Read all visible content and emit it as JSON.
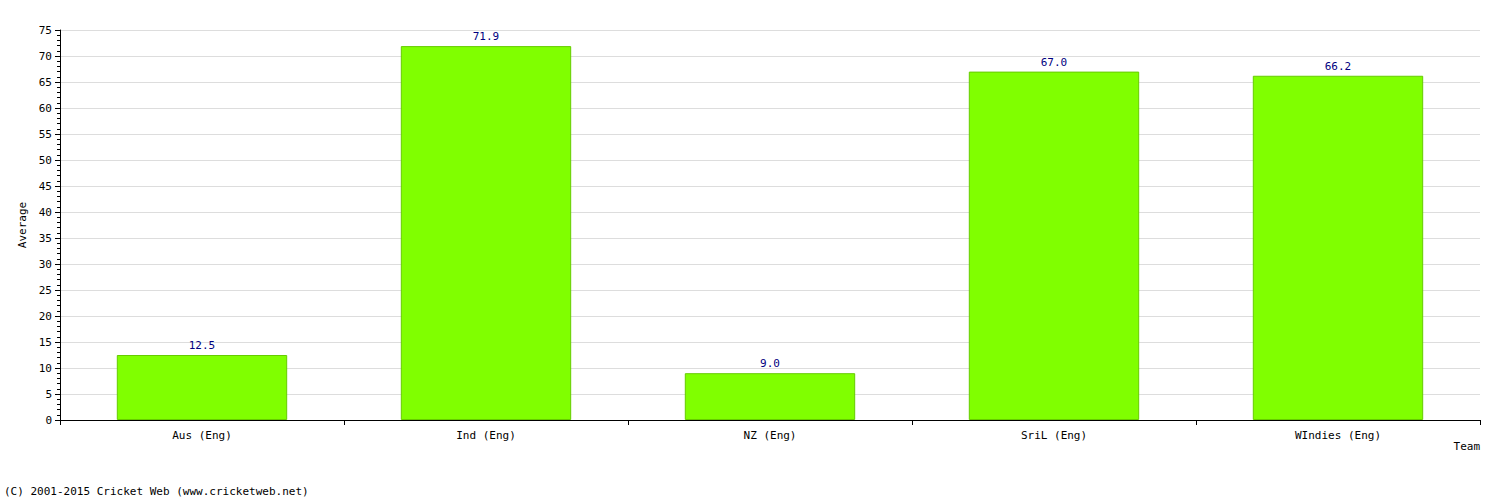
{
  "chart_data": {
    "type": "bar",
    "xlabel": "Team",
    "ylabel": "Average",
    "annotations": [
      "(C) 2001-2015 Cricket Web (www.cricketweb.net)"
    ],
    "categories": [
      "Aus (Eng)",
      "Ind (Eng)",
      "NZ (Eng)",
      "SriL (Eng)",
      "WIndies (Eng)"
    ],
    "values": [
      12.5,
      71.9,
      9.0,
      67.0,
      66.2
    ],
    "value_labels": [
      "12.5",
      "71.9",
      "9.0",
      "67.0",
      "66.2"
    ],
    "color": "#80ff00",
    "ylim": [
      0,
      75
    ],
    "yticks": [
      0,
      5,
      10,
      15,
      20,
      25,
      30,
      35,
      40,
      45,
      50,
      55,
      60,
      65,
      70,
      75
    ],
    "grid": true,
    "data_labels": true
  }
}
